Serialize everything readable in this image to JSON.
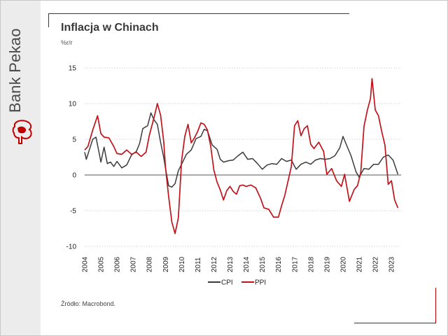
{
  "brand": {
    "name": "Bank Pekao"
  },
  "title": "Inflacja w Chinach",
  "subtitle": "%r/r",
  "source": "Źródło: Macrobond.",
  "colors": {
    "cpi": "#3b3b3b",
    "ppi": "#c0141c",
    "accent": "#c00000"
  },
  "chart_data": {
    "type": "line",
    "title": "Inflacja w Chinach",
    "ylabel": "%r/r",
    "xlabel": "",
    "ylim": [
      -10,
      15
    ],
    "yticks": [
      15,
      10,
      5,
      0,
      -5,
      -10
    ],
    "xlim": [
      2004.0,
      2023.6
    ],
    "xticks": [
      "2004",
      "2005",
      "2006",
      "2007",
      "2008",
      "2009",
      "2010",
      "2011",
      "2012",
      "2013",
      "2014",
      "2015",
      "2016",
      "2017",
      "2018",
      "2019",
      "2020",
      "2021",
      "2022",
      "2023"
    ],
    "legend": "bottom-center",
    "grid": "horizontal-dotted",
    "series": [
      {
        "name": "CPI",
        "x": [
          2004.0,
          2004.1,
          2004.3,
          2004.5,
          2004.7,
          2004.9,
          2005.0,
          2005.2,
          2005.4,
          2005.6,
          2005.8,
          2006.0,
          2006.3,
          2006.6,
          2006.9,
          2007.2,
          2007.4,
          2007.6,
          2007.9,
          2008.1,
          2008.3,
          2008.5,
          2008.7,
          2008.9,
          2009.0,
          2009.2,
          2009.4,
          2009.6,
          2009.8,
          2010.0,
          2010.3,
          2010.6,
          2010.9,
          2011.2,
          2011.4,
          2011.6,
          2011.9,
          2012.2,
          2012.4,
          2012.6,
          2012.9,
          2013.2,
          2013.5,
          2013.8,
          2014.1,
          2014.4,
          2014.7,
          2015.0,
          2015.3,
          2015.6,
          2015.9,
          2016.2,
          2016.5,
          2016.8,
          2017.1,
          2017.4,
          2017.7,
          2018.0,
          2018.3,
          2018.6,
          2018.9,
          2019.2,
          2019.5,
          2019.8,
          2020.0,
          2020.2,
          2020.5,
          2020.8,
          2021.0,
          2021.3,
          2021.6,
          2021.9,
          2022.2,
          2022.5,
          2022.8,
          2023.1,
          2023.4
        ],
        "values": [
          3.2,
          2.2,
          3.6,
          5.0,
          5.3,
          3.0,
          1.8,
          3.9,
          1.6,
          1.8,
          1.2,
          1.9,
          1.0,
          1.4,
          2.8,
          3.3,
          4.4,
          6.5,
          6.9,
          8.7,
          7.7,
          7.1,
          4.6,
          2.4,
          1.0,
          -1.5,
          -1.7,
          -1.2,
          0.6,
          1.5,
          2.9,
          3.5,
          5.1,
          5.4,
          6.4,
          6.2,
          4.2,
          3.6,
          2.2,
          1.8,
          2.0,
          2.1,
          2.7,
          3.2,
          2.2,
          2.3,
          1.6,
          0.8,
          1.4,
          1.6,
          1.5,
          2.3,
          1.9,
          2.1,
          0.8,
          1.5,
          1.8,
          1.5,
          2.1,
          2.3,
          2.2,
          2.3,
          2.7,
          3.8,
          5.4,
          4.3,
          2.7,
          0.5,
          -0.3,
          0.9,
          0.8,
          1.5,
          1.5,
          2.5,
          2.8,
          2.1,
          0.1
        ]
      },
      {
        "name": "PPI",
        "x": [
          2004.0,
          2004.2,
          2004.5,
          2004.8,
          2005.0,
          2005.2,
          2005.5,
          2005.8,
          2006.0,
          2006.3,
          2006.6,
          2006.9,
          2007.2,
          2007.5,
          2007.8,
          2008.0,
          2008.3,
          2008.5,
          2008.7,
          2008.9,
          2009.0,
          2009.2,
          2009.4,
          2009.6,
          2009.8,
          2010.0,
          2010.2,
          2010.4,
          2010.6,
          2010.8,
          2011.0,
          2011.2,
          2011.4,
          2011.6,
          2011.8,
          2012.0,
          2012.2,
          2012.4,
          2012.6,
          2012.8,
          2013.0,
          2013.2,
          2013.4,
          2013.6,
          2013.8,
          2014.0,
          2014.3,
          2014.6,
          2014.9,
          2015.1,
          2015.4,
          2015.7,
          2016.0,
          2016.2,
          2016.4,
          2016.6,
          2016.8,
          2017.0,
          2017.2,
          2017.4,
          2017.6,
          2017.8,
          2018.0,
          2018.2,
          2018.5,
          2018.8,
          2019.0,
          2019.3,
          2019.6,
          2019.9,
          2020.1,
          2020.4,
          2020.7,
          2020.9,
          2021.1,
          2021.3,
          2021.5,
          2021.7,
          2021.8,
          2022.0,
          2022.2,
          2022.4,
          2022.6,
          2022.8,
          2023.0,
          2023.2,
          2023.4
        ],
        "values": [
          3.5,
          4.0,
          6.3,
          8.3,
          5.8,
          5.3,
          5.2,
          4.0,
          3.0,
          2.9,
          3.5,
          2.9,
          3.2,
          2.6,
          3.2,
          5.5,
          8.1,
          10.0,
          8.4,
          4.6,
          1.2,
          -3.0,
          -6.6,
          -8.2,
          -6.0,
          2.0,
          5.4,
          7.1,
          4.5,
          5.2,
          6.1,
          7.3,
          7.1,
          6.3,
          4.1,
          0.7,
          -1.0,
          -2.1,
          -3.5,
          -2.2,
          -1.6,
          -2.3,
          -2.7,
          -1.5,
          -1.4,
          -1.6,
          -1.4,
          -1.8,
          -3.3,
          -4.6,
          -4.8,
          -5.9,
          -5.9,
          -4.3,
          -2.8,
          -0.8,
          1.2,
          6.9,
          7.6,
          5.5,
          6.5,
          6.9,
          4.3,
          3.7,
          4.6,
          3.3,
          0.1,
          0.9,
          -0.8,
          -1.6,
          0.1,
          -3.7,
          -2.0,
          -1.5,
          0.3,
          6.8,
          9.0,
          10.7,
          13.5,
          9.1,
          8.3,
          6.1,
          4.2,
          -1.3,
          -0.8,
          -3.5,
          -4.6
        ]
      }
    ]
  }
}
